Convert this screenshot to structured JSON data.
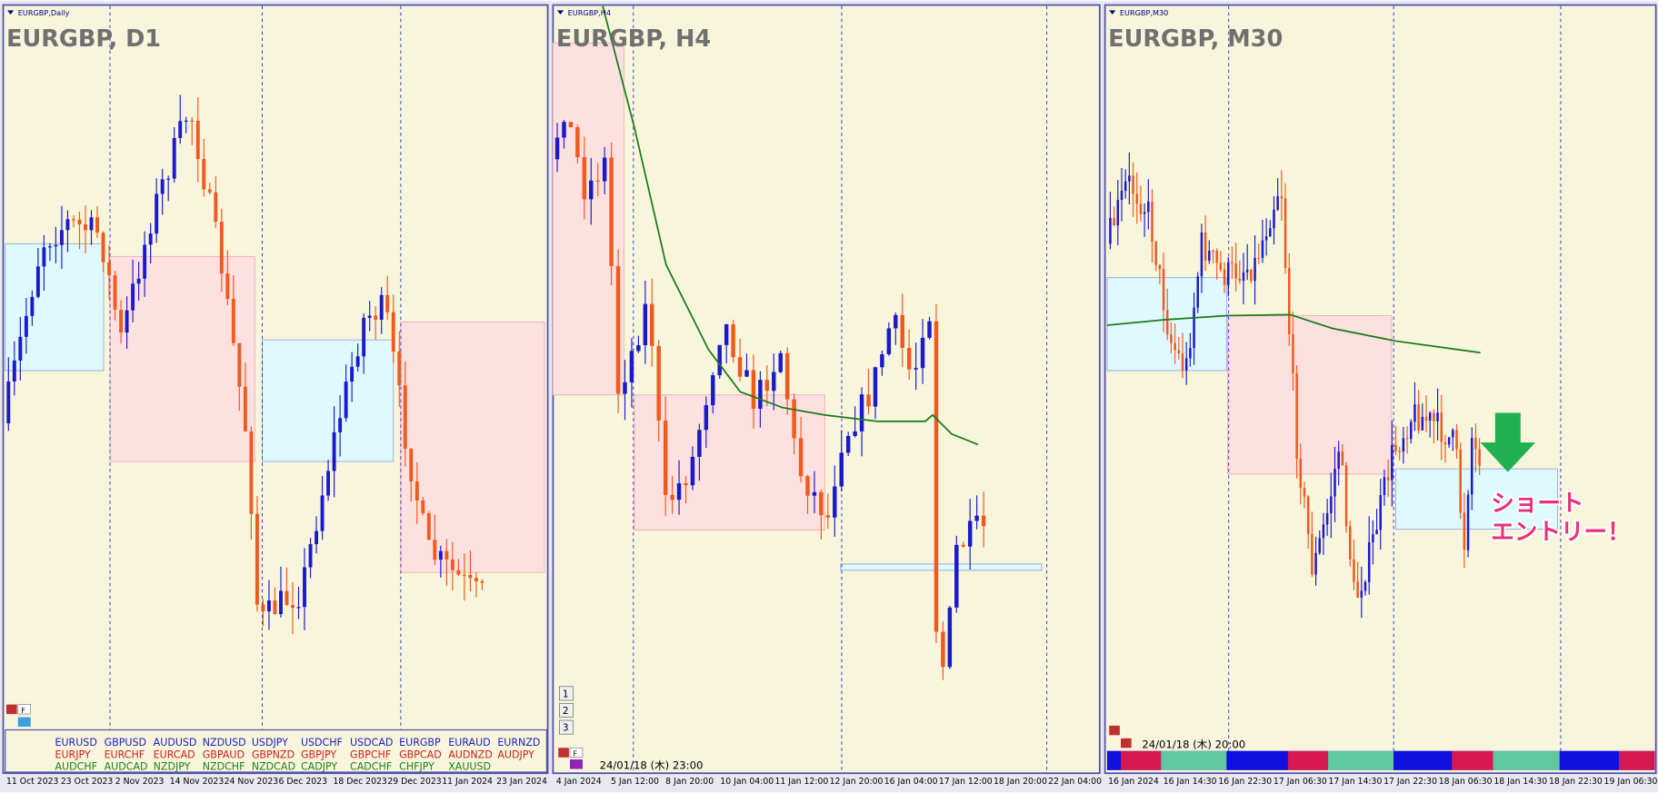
{
  "panels": [
    {
      "symbol_label": "EURGBP,Daily",
      "title": "EURGBP, D1",
      "f_button": "F",
      "dates": [
        "11 Oct 2023",
        "23 Oct 2023",
        "2 Nov 2023",
        "14 Nov 2023",
        "24 Nov 2023",
        "6 Dec 2023",
        "18 Dec 2023",
        "29 Dec 2023",
        "11 Jan 2024",
        "23 Jan 2024"
      ]
    },
    {
      "symbol_label": "EURGBP,H4",
      "title": "EURGBP, H4",
      "f_button": "F",
      "buttons": [
        "1",
        "2",
        "3"
      ],
      "timestamp": "24/01/18 (木) 23:00",
      "dates": [
        "4 Jan 2024",
        "5 Jan 12:00",
        "8 Jan 20:00",
        "10 Jan 04:00",
        "11 Jan 12:00",
        "12 Jan 20:00",
        "16 Jan 04:00",
        "17 Jan 12:00",
        "18 Jan 20:00",
        "22 Jan 04:00"
      ]
    },
    {
      "symbol_label": "EURGBP,M30",
      "title": "EURGBP, M30",
      "timestamp": "24/01/18 (木) 20:00",
      "annotation": [
        "ショート",
        "エントリー！"
      ],
      "dates": [
        "16 Jan 2024",
        "16 Jan 14:30",
        "16 Jan 22:30",
        "17 Jan 06:30",
        "17 Jan 14:30",
        "17 Jan 22:30",
        "18 Jan 06:30",
        "18 Jan 14:30",
        "18 Jan 22:30",
        "19 Jan 06:30"
      ]
    }
  ],
  "symbols": [
    [
      "EURUSD",
      "GBPUSD",
      "AUDUSD",
      "NZDUSD",
      "USDJPY",
      "USDCHF",
      "USDCAD",
      "EURGBP",
      "EURAUD",
      "EURNZD"
    ],
    [
      "EURJPY",
      "EURCHF",
      "EURCAD",
      "GBPAUD",
      "GBPNZD",
      "GBPJPY",
      "GBPCHF",
      "GBPCAD",
      "AUDNZD",
      "AUDJPY"
    ],
    [
      "AUDCHF",
      "AUDCAD",
      "NZDJPY",
      "NZDCHF",
      "NZDCAD",
      "CADJPY",
      "CADCHF",
      "CHFJPY",
      "XAUUSD"
    ]
  ]
}
